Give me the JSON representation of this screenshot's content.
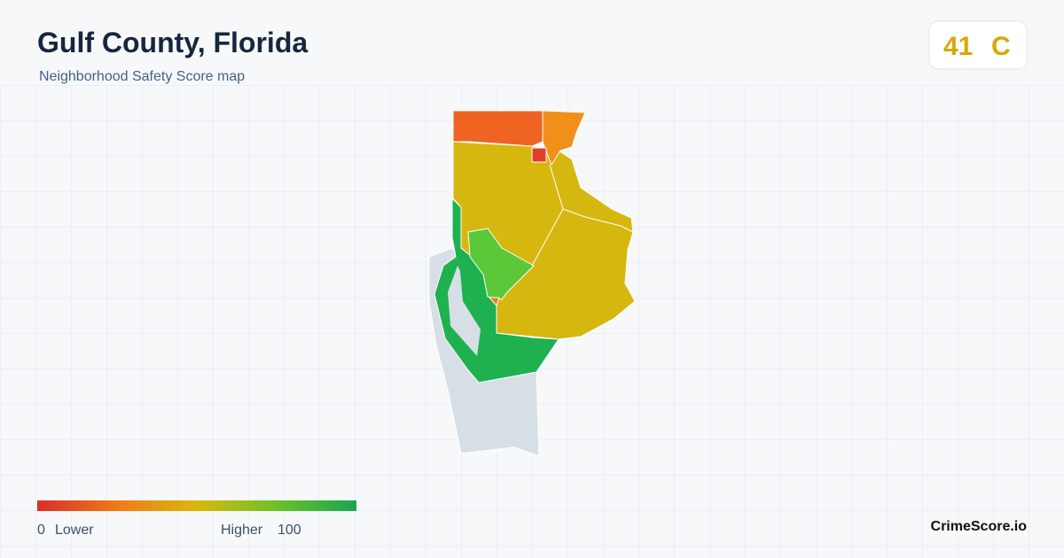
{
  "header": {
    "title": "Gulf County, Florida",
    "subtitle": "Neighborhood Safety Score map"
  },
  "score": {
    "value": 41,
    "grade": "C"
  },
  "legend": {
    "min": 0,
    "min_label": "Lower",
    "max_label": "Higher",
    "max": 100
  },
  "footer": {
    "brand": "CrimeScore.io"
  }
}
